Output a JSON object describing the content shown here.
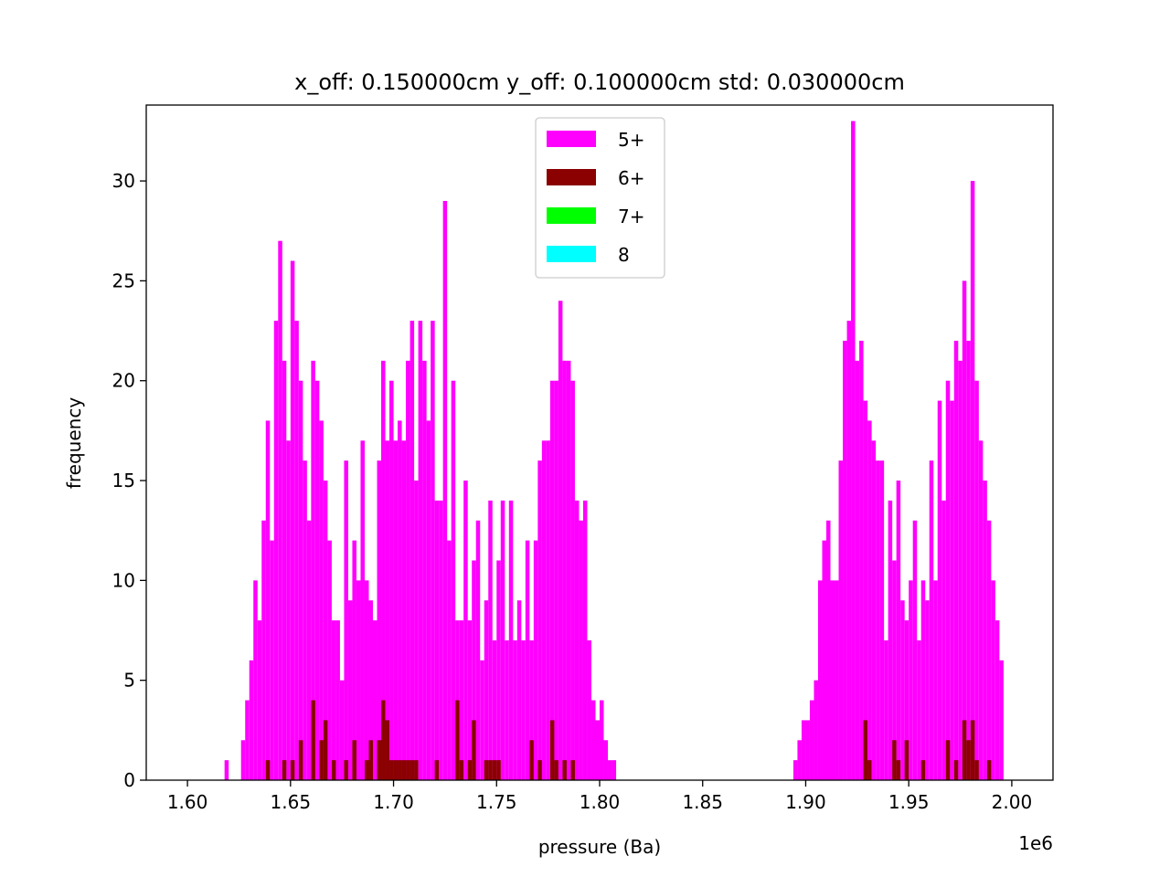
{
  "chart_data": {
    "type": "histogram",
    "title": "x_off: 0.150000cm y_off: 0.100000cm std: 0.030000cm",
    "xlabel": "pressure (Ba)",
    "ylabel": "frequency",
    "x_offset_text": "1e6",
    "xlim": [
      1.58,
      2.02
    ],
    "ylim": [
      0,
      33.8
    ],
    "xticks": [
      1.6,
      1.65,
      1.7,
      1.75,
      1.8,
      1.85,
      1.9,
      1.95,
      2.0
    ],
    "xtick_labels": [
      "1.60",
      "1.65",
      "1.70",
      "1.75",
      "1.80",
      "1.85",
      "1.90",
      "1.95",
      "2.00"
    ],
    "yticks": [
      0,
      5,
      10,
      15,
      20,
      25,
      30
    ],
    "ytick_labels": [
      "0",
      "5",
      "10",
      "15",
      "20",
      "25",
      "30"
    ],
    "legend_position": "upper center",
    "grid": false,
    "series": [
      {
        "name": "5+",
        "color": "#ff00ff",
        "bins": [
          [
            1.618,
            1.62,
            1
          ],
          [
            1.626,
            1.628,
            2
          ],
          [
            1.628,
            1.63,
            4
          ],
          [
            1.63,
            1.632,
            6
          ],
          [
            1.632,
            1.634,
            10
          ],
          [
            1.634,
            1.636,
            8
          ],
          [
            1.636,
            1.638,
            13
          ],
          [
            1.638,
            1.64,
            18
          ],
          [
            1.64,
            1.642,
            12
          ],
          [
            1.642,
            1.644,
            23
          ],
          [
            1.644,
            1.646,
            27
          ],
          [
            1.646,
            1.648,
            21
          ],
          [
            1.648,
            1.65,
            17
          ],
          [
            1.65,
            1.652,
            26
          ],
          [
            1.652,
            1.654,
            23
          ],
          [
            1.654,
            1.656,
            20
          ],
          [
            1.656,
            1.658,
            16
          ],
          [
            1.658,
            1.66,
            13
          ],
          [
            1.66,
            1.662,
            21
          ],
          [
            1.662,
            1.664,
            20
          ],
          [
            1.664,
            1.666,
            18
          ],
          [
            1.666,
            1.668,
            15
          ],
          [
            1.668,
            1.67,
            12
          ],
          [
            1.67,
            1.672,
            8
          ],
          [
            1.672,
            1.674,
            8
          ],
          [
            1.674,
            1.676,
            5
          ],
          [
            1.676,
            1.678,
            16
          ],
          [
            1.678,
            1.68,
            9
          ],
          [
            1.68,
            1.682,
            12
          ],
          [
            1.682,
            1.684,
            10
          ],
          [
            1.684,
            1.686,
            17
          ],
          [
            1.686,
            1.688,
            10
          ],
          [
            1.688,
            1.69,
            9
          ],
          [
            1.69,
            1.692,
            8
          ],
          [
            1.692,
            1.694,
            16
          ],
          [
            1.694,
            1.696,
            21
          ],
          [
            1.696,
            1.698,
            17
          ],
          [
            1.698,
            1.7,
            20
          ],
          [
            1.7,
            1.702,
            17
          ],
          [
            1.702,
            1.704,
            18
          ],
          [
            1.704,
            1.706,
            17
          ],
          [
            1.706,
            1.708,
            21
          ],
          [
            1.708,
            1.71,
            23
          ],
          [
            1.71,
            1.712,
            15
          ],
          [
            1.712,
            1.714,
            23
          ],
          [
            1.714,
            1.716,
            21
          ],
          [
            1.716,
            1.718,
            18
          ],
          [
            1.718,
            1.72,
            23
          ],
          [
            1.72,
            1.722,
            14
          ],
          [
            1.722,
            1.724,
            14
          ],
          [
            1.724,
            1.726,
            29
          ],
          [
            1.726,
            1.728,
            12
          ],
          [
            1.728,
            1.73,
            20
          ],
          [
            1.73,
            1.732,
            8
          ],
          [
            1.732,
            1.734,
            8
          ],
          [
            1.734,
            1.736,
            15
          ],
          [
            1.736,
            1.738,
            8
          ],
          [
            1.738,
            1.74,
            11
          ],
          [
            1.74,
            1.742,
            13
          ],
          [
            1.742,
            1.744,
            6
          ],
          [
            1.744,
            1.746,
            9
          ],
          [
            1.746,
            1.748,
            14
          ],
          [
            1.748,
            1.75,
            7
          ],
          [
            1.75,
            1.752,
            11
          ],
          [
            1.752,
            1.754,
            14
          ],
          [
            1.754,
            1.756,
            7
          ],
          [
            1.756,
            1.758,
            14
          ],
          [
            1.758,
            1.76,
            7
          ],
          [
            1.76,
            1.762,
            9
          ],
          [
            1.762,
            1.764,
            7
          ],
          [
            1.764,
            1.766,
            12
          ],
          [
            1.766,
            1.768,
            7
          ],
          [
            1.768,
            1.77,
            12
          ],
          [
            1.77,
            1.772,
            16
          ],
          [
            1.772,
            1.774,
            17
          ],
          [
            1.774,
            1.776,
            17
          ],
          [
            1.776,
            1.778,
            20
          ],
          [
            1.778,
            1.78,
            20
          ],
          [
            1.78,
            1.782,
            24
          ],
          [
            1.782,
            1.784,
            21
          ],
          [
            1.784,
            1.786,
            21
          ],
          [
            1.786,
            1.788,
            20
          ],
          [
            1.788,
            1.79,
            14
          ],
          [
            1.79,
            1.792,
            13
          ],
          [
            1.792,
            1.794,
            14
          ],
          [
            1.794,
            1.796,
            7
          ],
          [
            1.796,
            1.798,
            4
          ],
          [
            1.798,
            1.8,
            3
          ],
          [
            1.8,
            1.802,
            4
          ],
          [
            1.802,
            1.804,
            2
          ],
          [
            1.804,
            1.806,
            1
          ],
          [
            1.806,
            1.808,
            1
          ],
          [
            1.894,
            1.896,
            1
          ],
          [
            1.896,
            1.898,
            2
          ],
          [
            1.898,
            1.9,
            3
          ],
          [
            1.9,
            1.902,
            3
          ],
          [
            1.902,
            1.904,
            4
          ],
          [
            1.904,
            1.906,
            5
          ],
          [
            1.906,
            1.908,
            10
          ],
          [
            1.908,
            1.91,
            12
          ],
          [
            1.91,
            1.912,
            13
          ],
          [
            1.912,
            1.914,
            10
          ],
          [
            1.914,
            1.916,
            10
          ],
          [
            1.916,
            1.918,
            16
          ],
          [
            1.918,
            1.92,
            22
          ],
          [
            1.92,
            1.922,
            23
          ],
          [
            1.922,
            1.924,
            33
          ],
          [
            1.924,
            1.926,
            21
          ],
          [
            1.926,
            1.928,
            22
          ],
          [
            1.928,
            1.93,
            19
          ],
          [
            1.93,
            1.932,
            18
          ],
          [
            1.932,
            1.934,
            17
          ],
          [
            1.934,
            1.936,
            16
          ],
          [
            1.936,
            1.938,
            16
          ],
          [
            1.938,
            1.94,
            7
          ],
          [
            1.94,
            1.942,
            14
          ],
          [
            1.942,
            1.944,
            11
          ],
          [
            1.944,
            1.946,
            15
          ],
          [
            1.946,
            1.948,
            9
          ],
          [
            1.948,
            1.95,
            8
          ],
          [
            1.95,
            1.952,
            10
          ],
          [
            1.952,
            1.954,
            13
          ],
          [
            1.954,
            1.956,
            7
          ],
          [
            1.956,
            1.958,
            10
          ],
          [
            1.958,
            1.96,
            9
          ],
          [
            1.96,
            1.962,
            16
          ],
          [
            1.962,
            1.964,
            10
          ],
          [
            1.964,
            1.966,
            19
          ],
          [
            1.966,
            1.968,
            14
          ],
          [
            1.968,
            1.97,
            20
          ],
          [
            1.97,
            1.972,
            19
          ],
          [
            1.972,
            1.974,
            22
          ],
          [
            1.974,
            1.976,
            21
          ],
          [
            1.976,
            1.978,
            25
          ],
          [
            1.978,
            1.98,
            22
          ],
          [
            1.98,
            1.982,
            30
          ],
          [
            1.982,
            1.984,
            20
          ],
          [
            1.984,
            1.986,
            17
          ],
          [
            1.986,
            1.988,
            15
          ],
          [
            1.988,
            1.99,
            13
          ],
          [
            1.99,
            1.992,
            10
          ],
          [
            1.992,
            1.994,
            8
          ],
          [
            1.994,
            1.996,
            6
          ]
        ]
      },
      {
        "name": "6+",
        "color": "#8b0000",
        "bins": [
          [
            1.638,
            1.64,
            1
          ],
          [
            1.646,
            1.648,
            1
          ],
          [
            1.65,
            1.652,
            1
          ],
          [
            1.654,
            1.656,
            2
          ],
          [
            1.66,
            1.662,
            4
          ],
          [
            1.664,
            1.666,
            2
          ],
          [
            1.666,
            1.668,
            3
          ],
          [
            1.67,
            1.672,
            1
          ],
          [
            1.676,
            1.678,
            1
          ],
          [
            1.68,
            1.682,
            2
          ],
          [
            1.686,
            1.688,
            1
          ],
          [
            1.688,
            1.69,
            2
          ],
          [
            1.692,
            1.694,
            2
          ],
          [
            1.694,
            1.696,
            4
          ],
          [
            1.696,
            1.698,
            3
          ],
          [
            1.698,
            1.7,
            1
          ],
          [
            1.7,
            1.702,
            1
          ],
          [
            1.702,
            1.704,
            1
          ],
          [
            1.704,
            1.706,
            1
          ],
          [
            1.706,
            1.708,
            1
          ],
          [
            1.708,
            1.71,
            1
          ],
          [
            1.71,
            1.712,
            1
          ],
          [
            1.72,
            1.722,
            1
          ],
          [
            1.73,
            1.732,
            4
          ],
          [
            1.732,
            1.734,
            1
          ],
          [
            1.736,
            1.738,
            1
          ],
          [
            1.738,
            1.74,
            3
          ],
          [
            1.744,
            1.746,
            1
          ],
          [
            1.746,
            1.748,
            1
          ],
          [
            1.748,
            1.75,
            1
          ],
          [
            1.75,
            1.752,
            1
          ],
          [
            1.766,
            1.768,
            2
          ],
          [
            1.77,
            1.772,
            1
          ],
          [
            1.776,
            1.778,
            3
          ],
          [
            1.778,
            1.78,
            1
          ],
          [
            1.782,
            1.784,
            1
          ],
          [
            1.786,
            1.788,
            1
          ],
          [
            1.928,
            1.93,
            3
          ],
          [
            1.93,
            1.932,
            1
          ],
          [
            1.942,
            1.944,
            2
          ],
          [
            1.944,
            1.946,
            1
          ],
          [
            1.948,
            1.95,
            2
          ],
          [
            1.956,
            1.958,
            1
          ],
          [
            1.968,
            1.97,
            2
          ],
          [
            1.972,
            1.974,
            1
          ],
          [
            1.976,
            1.978,
            3
          ],
          [
            1.978,
            1.98,
            2
          ],
          [
            1.98,
            1.982,
            3
          ],
          [
            1.982,
            1.984,
            1
          ],
          [
            1.988,
            1.99,
            1
          ]
        ]
      },
      {
        "name": "7+",
        "color": "#00ff00",
        "bins": []
      },
      {
        "name": "8",
        "color": "#00ffff",
        "bins": []
      }
    ]
  }
}
